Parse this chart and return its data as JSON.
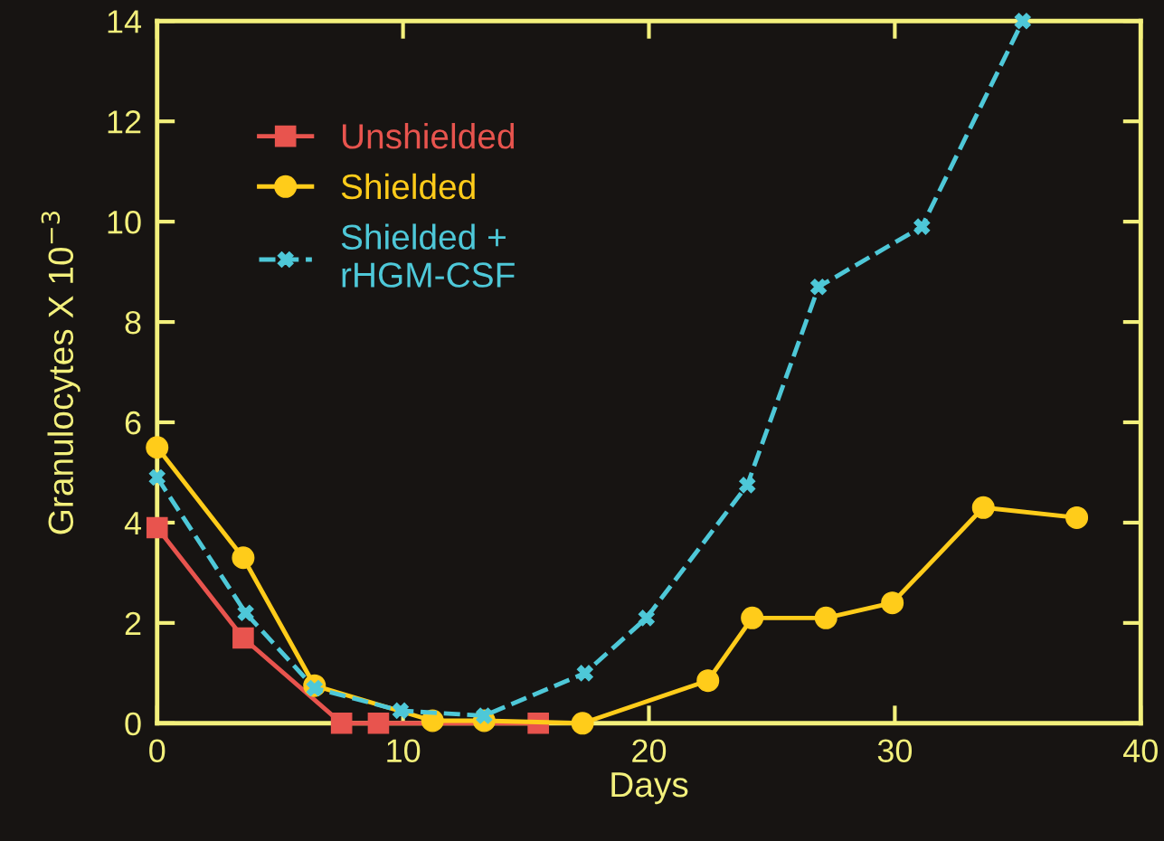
{
  "chart_data": {
    "type": "line",
    "xlabel": "Days",
    "ylabel": "Granulocytes X 10$^{−3}$",
    "xlim": [
      0,
      40
    ],
    "xticks": [
      0,
      10,
      20,
      30,
      40
    ],
    "ylim": [
      0,
      14
    ],
    "yticks": [
      0,
      2,
      4,
      6,
      8,
      10,
      12,
      14
    ],
    "grid": false,
    "legend": "top left",
    "series": [
      {
        "name": "Unshielded",
        "color": "#e8544e",
        "marker": "square",
        "x": [
          0,
          3.5,
          7.5,
          9.0,
          15.5
        ],
        "values": [
          3.9,
          1.7,
          0,
          0,
          0
        ]
      },
      {
        "name": "Shielded",
        "color": "#ffcc1a",
        "marker": "circle",
        "x": [
          0,
          3.5,
          6.4,
          11.2,
          13.3,
          17.3,
          22.4,
          24.2,
          27.2,
          29.9,
          33.6,
          37.4
        ],
        "values": [
          5.5,
          3.3,
          0.75,
          0.05,
          0.05,
          0,
          0.85,
          2.1,
          2.1,
          2.4,
          4.3,
          4.1
        ]
      },
      {
        "name": "Shielded +\nrHGM-CSF",
        "color": "#4ec8d8",
        "marker": "cross",
        "line_style": "dashed",
        "x": [
          0,
          3.6,
          6.4,
          9.9,
          13.3,
          17.4,
          19.9,
          24.0,
          26.9,
          31.1,
          35.2
        ],
        "values": [
          4.9,
          2.2,
          0.7,
          0.25,
          0.15,
          1.0,
          2.1,
          4.75,
          8.7,
          9.9,
          14.0
        ]
      }
    ]
  }
}
